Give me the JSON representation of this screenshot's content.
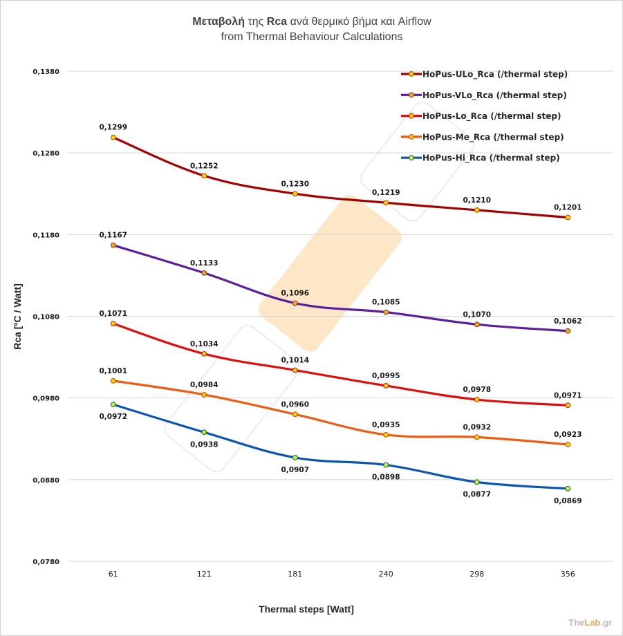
{
  "chart_data": {
    "type": "line",
    "title": {
      "line1_parts": [
        {
          "text": "Μεταβολή",
          "bold": true
        },
        {
          "text": " της ",
          "bold": false
        },
        {
          "text": "Rca",
          "bold": true
        },
        {
          "text": " ανά θερμικό βήμα και  Airflow",
          "bold": false
        }
      ],
      "line2": "from Thermal Behaviour Calculations"
    },
    "xlabel": "Thermal steps  [Watt]",
    "ylabel": "Rca   [ºC / Watt]",
    "ylim": [
      0.078,
      0.138
    ],
    "yticks": [
      0.138,
      0.128,
      0.118,
      0.108,
      0.098,
      0.088,
      0.078
    ],
    "ytick_labels": [
      "0,1380",
      "0,1280",
      "0,1180",
      "0,1080",
      "0,0980",
      "0,0880",
      "0,0780"
    ],
    "categories": [
      "61",
      "121",
      "181",
      "240",
      "298",
      "356"
    ],
    "grid": "horizontal",
    "legend_position": "top-right",
    "series": [
      {
        "name": "HoPus-ULo_Rca (/thermal step)",
        "color": "#a50000",
        "marker_fill": "#ffd400",
        "marker_edge": "#b04000",
        "label_pos": "above",
        "values": [
          0.1299,
          0.1252,
          0.123,
          0.1219,
          0.121,
          0.1201
        ],
        "labels": [
          "0,1299",
          "0,1252",
          "0,1230",
          "0,1219",
          "0,1210",
          "0,1201"
        ]
      },
      {
        "name": "HoPus-VLo_Rca (/thermal step)",
        "color": "#5b1d9b",
        "marker_fill": "#f5a623",
        "marker_edge": "#7a3a20",
        "label_pos": "above",
        "values": [
          0.1167,
          0.1133,
          0.1096,
          0.1085,
          0.107,
          0.1062
        ],
        "labels": [
          "0,1167",
          "0,1133",
          "0,1096",
          "0,1085",
          "0,1070",
          "0,1062"
        ]
      },
      {
        "name": "HoPus-Lo_Rca (/thermal step)",
        "color": "#e30b0b",
        "marker_fill": "#ffd400",
        "marker_edge": "#c01010",
        "label_pos": "above",
        "values": [
          0.1071,
          0.1034,
          0.1014,
          0.0995,
          0.0978,
          0.0971
        ],
        "labels": [
          "0,1071",
          "0,1034",
          "0,1014",
          "0,0995",
          "0,0978",
          "0,0971"
        ]
      },
      {
        "name": "HoPus-Me_Rca (/thermal step)",
        "color": "#f25a0f",
        "marker_fill": "#ffd400",
        "marker_edge": "#d04010",
        "label_pos": "above",
        "values": [
          0.1001,
          0.0984,
          0.096,
          0.0935,
          0.0932,
          0.0923
        ],
        "labels": [
          "0,1001",
          "0,0984",
          "0,0960",
          "0,0935",
          "0,0932",
          "0,0923"
        ]
      },
      {
        "name": "HoPus-Hi_Rca (/thermal step)",
        "color": "#0b56b0",
        "marker_fill": "#c8f03c",
        "marker_edge": "#1a5a40",
        "label_pos": "below",
        "values": [
          0.0972,
          0.0938,
          0.0907,
          0.0898,
          0.0877,
          0.0869
        ],
        "labels": [
          "0,0972",
          "0,0938",
          "0,0907",
          "0,0898",
          "0,0877",
          "0,0869"
        ]
      }
    ]
  },
  "watermark": {
    "text_outline_1": "The",
    "text_filled": "Lab",
    "text_outline_2": ".gr",
    "fill_color": "#fde3bd"
  }
}
